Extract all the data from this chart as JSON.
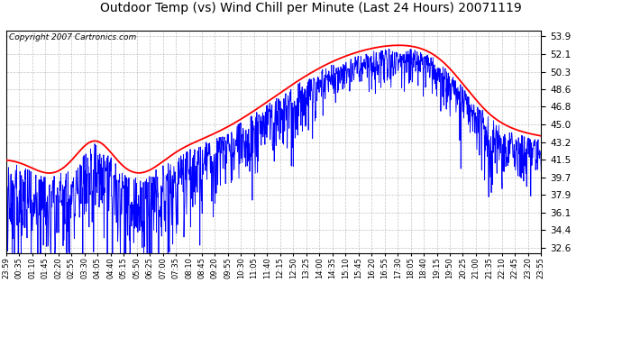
{
  "title": "Outdoor Temp (vs) Wind Chill per Minute (Last 24 Hours) 20071119",
  "copyright_text": "Copyright 2007 Cartronics.com",
  "yticks": [
    32.6,
    34.4,
    36.1,
    37.9,
    39.7,
    41.5,
    43.2,
    45.0,
    46.8,
    48.6,
    50.3,
    52.1,
    53.9
  ],
  "ylim": [
    32.0,
    54.5
  ],
  "xtick_labels": [
    "23:59",
    "00:35",
    "01:10",
    "01:45",
    "02:20",
    "02:55",
    "03:30",
    "04:05",
    "04:40",
    "05:15",
    "05:50",
    "06:25",
    "07:00",
    "07:35",
    "08:10",
    "08:45",
    "09:20",
    "09:55",
    "10:30",
    "11:05",
    "11:40",
    "12:15",
    "12:50",
    "13:25",
    "14:00",
    "14:35",
    "15:10",
    "15:45",
    "16:20",
    "16:55",
    "17:30",
    "18:05",
    "18:40",
    "19:15",
    "19:50",
    "20:25",
    "21:00",
    "21:35",
    "22:10",
    "22:45",
    "23:20",
    "23:55"
  ],
  "red_line_color": "#FF0000",
  "blue_line_color": "#0000FF",
  "bg_color": "#FFFFFF",
  "grid_color": "#AAAAAA",
  "title_fontsize": 10,
  "copyright_fontsize": 6.5
}
